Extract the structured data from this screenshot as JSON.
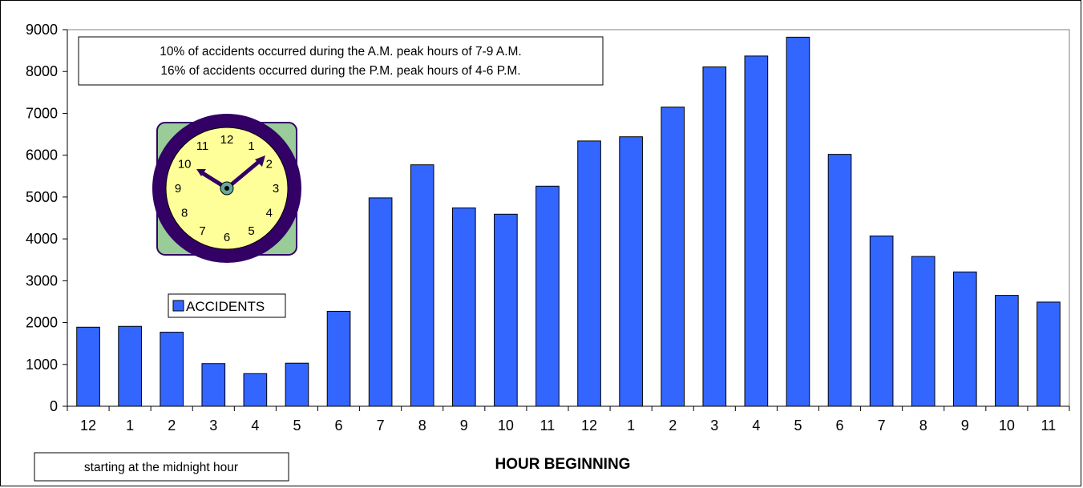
{
  "chart_data": {
    "type": "bar",
    "categories": [
      "12",
      "1",
      "2",
      "3",
      "4",
      "5",
      "6",
      "7",
      "8",
      "9",
      "10",
      "11",
      "12",
      "1",
      "2",
      "3",
      "4",
      "5",
      "6",
      "7",
      "8",
      "9",
      "10",
      "11"
    ],
    "series": [
      {
        "name": "ACCIDENTS",
        "values": [
          1890,
          1910,
          1770,
          1020,
          780,
          1030,
          2270,
          4980,
          5770,
          4740,
          4590,
          5260,
          6340,
          6440,
          7150,
          8110,
          8370,
          8820,
          6020,
          4070,
          3580,
          3210,
          2650,
          2490
        ]
      }
    ],
    "xlabel": "HOUR BEGINNING",
    "ylabel": "",
    "ylim": [
      0,
      9000
    ],
    "yticks": [
      0,
      1000,
      2000,
      3000,
      4000,
      5000,
      6000,
      7000,
      8000,
      9000
    ],
    "grid": false,
    "legend": "left-middle",
    "bar_color": "#3366ff",
    "annotations": [
      "10% of accidents occurred during the A.M. peak hours of 7-9 A.M.",
      "16% of accidents occurred during the P.M. peak hours of 4-6 P.M."
    ],
    "note": "starting at the midnight hour"
  },
  "clock": {
    "numbers": [
      "12",
      "1",
      "2",
      "3",
      "4",
      "5",
      "6",
      "7",
      "8",
      "9",
      "10",
      "11"
    ],
    "rim_color": "#330066",
    "face_color": "#ffff99",
    "background_color": "#99cc99",
    "hand_color": "#330066",
    "icon": "clock-icon"
  }
}
